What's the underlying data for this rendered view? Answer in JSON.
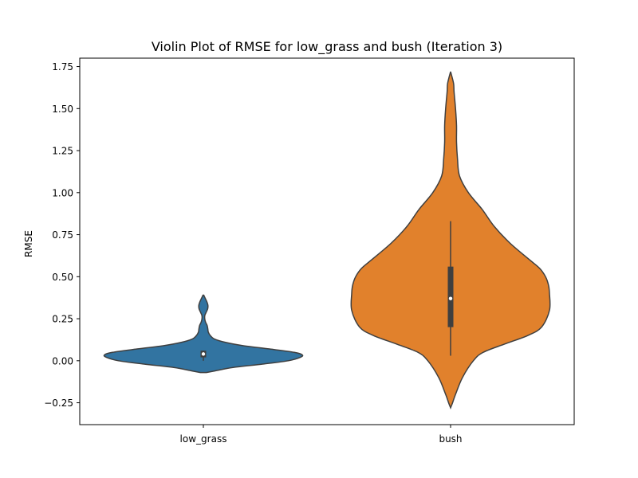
{
  "chart_data": {
    "type": "violin",
    "title": "Violin Plot of RMSE for low_grass and bush (Iteration 3)",
    "xlabel": "",
    "ylabel": "RMSE",
    "ylim": [
      -0.38,
      1.8
    ],
    "yticks": [
      -0.25,
      0.0,
      0.25,
      0.5,
      0.75,
      1.0,
      1.25,
      1.5,
      1.75
    ],
    "ytick_labels": [
      "−0.25",
      "0.00",
      "0.25",
      "0.50",
      "0.75",
      "1.00",
      "1.25",
      "1.50",
      "1.75"
    ],
    "categories": [
      "low_grass",
      "bush"
    ],
    "grid": false,
    "series": [
      {
        "category": "low_grass",
        "color": "#3274a1",
        "profile": [
          [
            -0.07,
            0.03
          ],
          [
            -0.06,
            0.12
          ],
          [
            -0.04,
            0.3
          ],
          [
            -0.02,
            0.6
          ],
          [
            0.0,
            0.86
          ],
          [
            0.02,
            0.98
          ],
          [
            0.035,
            1.0
          ],
          [
            0.05,
            0.92
          ],
          [
            0.07,
            0.67
          ],
          [
            0.09,
            0.4
          ],
          [
            0.11,
            0.22
          ],
          [
            0.13,
            0.11
          ],
          [
            0.15,
            0.07
          ],
          [
            0.17,
            0.05
          ],
          [
            0.19,
            0.045
          ],
          [
            0.21,
            0.038
          ],
          [
            0.23,
            0.022
          ],
          [
            0.25,
            0.014
          ],
          [
            0.27,
            0.015
          ],
          [
            0.29,
            0.03
          ],
          [
            0.31,
            0.044
          ],
          [
            0.33,
            0.046
          ],
          [
            0.35,
            0.036
          ],
          [
            0.37,
            0.02
          ],
          [
            0.39,
            0.004
          ]
        ],
        "box": {
          "q1": 0.02,
          "median": 0.04,
          "q3": 0.06,
          "whisker_low": 0.0,
          "whisker_high": 0.06
        }
      },
      {
        "category": "bush",
        "color": "#e1812c",
        "profile": [
          [
            -0.28,
            0.0
          ],
          [
            -0.25,
            0.02
          ],
          [
            -0.2,
            0.05
          ],
          [
            -0.1,
            0.12
          ],
          [
            0.0,
            0.23
          ],
          [
            0.05,
            0.33
          ],
          [
            0.1,
            0.55
          ],
          [
            0.15,
            0.78
          ],
          [
            0.2,
            0.92
          ],
          [
            0.3,
            1.0
          ],
          [
            0.4,
            1.0
          ],
          [
            0.45,
            0.99
          ],
          [
            0.5,
            0.96
          ],
          [
            0.55,
            0.9
          ],
          [
            0.6,
            0.8
          ],
          [
            0.7,
            0.6
          ],
          [
            0.8,
            0.44
          ],
          [
            0.9,
            0.32
          ],
          [
            1.0,
            0.18
          ],
          [
            1.1,
            0.09
          ],
          [
            1.2,
            0.07
          ],
          [
            1.3,
            0.06
          ],
          [
            1.4,
            0.06
          ],
          [
            1.5,
            0.05
          ],
          [
            1.6,
            0.035
          ],
          [
            1.65,
            0.03
          ],
          [
            1.72,
            0.0
          ]
        ],
        "box": {
          "q1": 0.2,
          "median": 0.37,
          "q3": 0.56,
          "whisker_low": 0.03,
          "whisker_high": 0.83
        }
      }
    ]
  }
}
